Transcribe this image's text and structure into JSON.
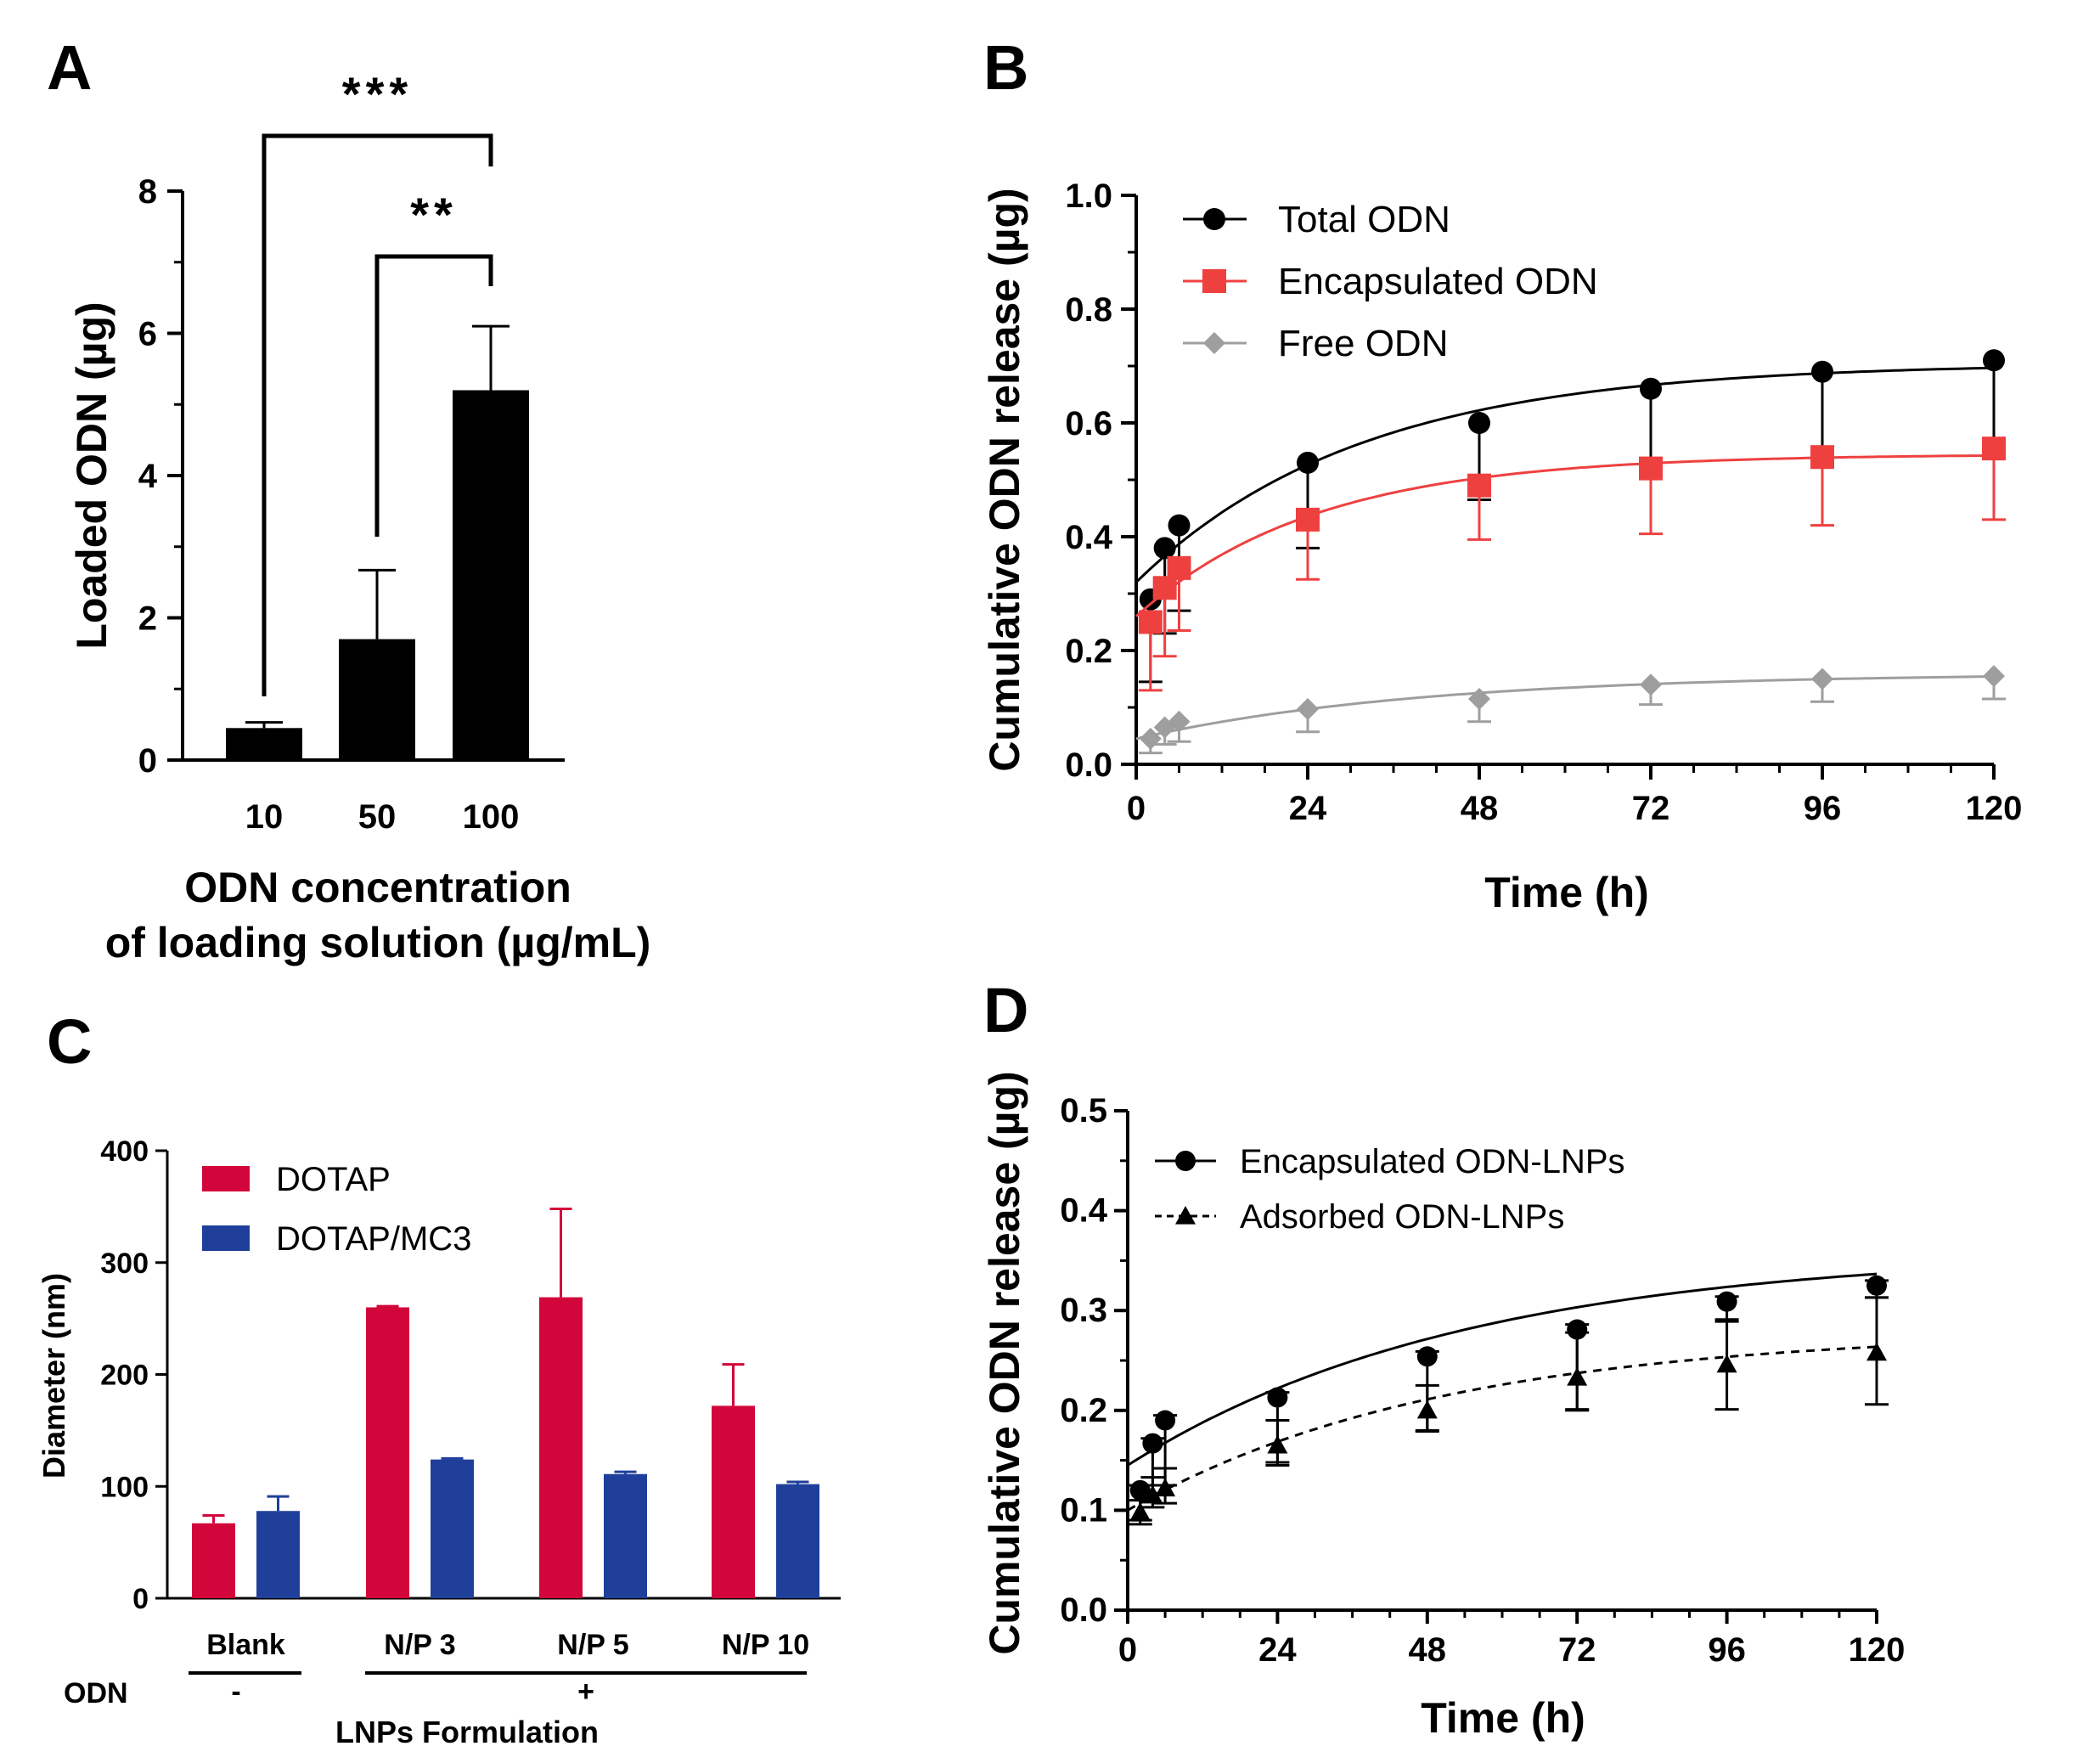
{
  "panels": {
    "A": "A",
    "B": "B",
    "C": "C",
    "D": "D"
  },
  "chart_data": [
    {
      "panel": "A",
      "type": "bar",
      "title": "",
      "xlabel": [
        "ODN concentration",
        "of loading solution (µg/mL)"
      ],
      "ylabel": "Loaded ODN (µg)",
      "categories": [
        "10",
        "50",
        "100"
      ],
      "values": [
        0.45,
        1.7,
        5.2
      ],
      "errors": [
        0.08,
        0.97,
        0.9
      ],
      "ylim": [
        0,
        8
      ],
      "yticks": [
        "0",
        "2",
        "4",
        "6",
        "8"
      ],
      "significance": [
        {
          "from": 0,
          "to": 2,
          "label": "***"
        },
        {
          "from": 1,
          "to": 2,
          "label": "**"
        }
      ],
      "colors": {
        "bar": "#000000"
      }
    },
    {
      "panel": "B",
      "type": "line",
      "xlabel": "Time (h)",
      "ylabel": "Cumulative ODN release (µg)",
      "xlim": [
        0,
        120
      ],
      "ylim": [
        0,
        1.0
      ],
      "xticks": [
        "0",
        "24",
        "48",
        "72",
        "96",
        "120"
      ],
      "yticks": [
        "0.0",
        "0.2",
        "0.4",
        "0.6",
        "0.8",
        "1.0"
      ],
      "legend_position": "top-left",
      "series": [
        {
          "name": "Total ODN",
          "color": "#000000",
          "marker": "circle",
          "error_dir": "down",
          "x": [
            2,
            4,
            6,
            24,
            48,
            72,
            96,
            120
          ],
          "y": [
            0.29,
            0.38,
            0.42,
            0.53,
            0.6,
            0.66,
            0.69,
            0.71
          ],
          "err": [
            0.145,
            0.15,
            0.15,
            0.15,
            0.135,
            0.14,
            0.15,
            0.15
          ],
          "fit": {
            "y0": 0.32,
            "plateau": 0.705,
            "k": 0.032
          }
        },
        {
          "name": "Encapsulated ODN",
          "color": "#ef4040",
          "marker": "square",
          "error_dir": "down",
          "x": [
            2,
            4,
            6,
            24,
            48,
            72,
            96,
            120
          ],
          "y": [
            0.25,
            0.31,
            0.345,
            0.43,
            0.49,
            0.52,
            0.54,
            0.555
          ],
          "err": [
            0.12,
            0.12,
            0.11,
            0.105,
            0.095,
            0.115,
            0.12,
            0.125
          ],
          "fit": {
            "y0": 0.26,
            "plateau": 0.545,
            "k": 0.04
          }
        },
        {
          "name": "Free ODN",
          "color": "#9e9e9e",
          "marker": "diamond",
          "error_dir": "down",
          "x": [
            2,
            4,
            6,
            24,
            48,
            72,
            96,
            120
          ],
          "y": [
            0.045,
            0.065,
            0.075,
            0.097,
            0.115,
            0.14,
            0.15,
            0.155
          ],
          "err": [
            0.025,
            0.03,
            0.035,
            0.04,
            0.04,
            0.035,
            0.04,
            0.04
          ],
          "fit": {
            "y0": 0.045,
            "plateau": 0.16,
            "k": 0.025
          }
        }
      ]
    },
    {
      "panel": "C",
      "type": "bar",
      "xlabel": "LNPs Formulation",
      "ylabel": "Diameter (nm)",
      "categories": [
        "Blank",
        "N/P 3",
        "N/P 5",
        "N/P 10"
      ],
      "ylim": [
        0,
        400
      ],
      "yticks": [
        "0",
        "100",
        "200",
        "300",
        "400"
      ],
      "odn_row": {
        "label": "ODN",
        "minus": "-",
        "plus": "+"
      },
      "legend_position": "top-left",
      "series": [
        {
          "name": "DOTAP",
          "color": "#d2063a",
          "values": [
            67,
            260,
            269,
            172
          ],
          "errors": [
            7,
            1,
            79,
            37
          ]
        },
        {
          "name": "DOTAP/MC3",
          "color": "#1f3f9a",
          "values": [
            78,
            124,
            111,
            102
          ],
          "errors": [
            13,
            1,
            2,
            2
          ]
        }
      ]
    },
    {
      "panel": "D",
      "type": "line",
      "xlabel": "Time (h)",
      "ylabel": "Cumulative ODN release (µg)",
      "xlim": [
        0,
        120
      ],
      "ylim": [
        0,
        0.5
      ],
      "xticks": [
        "0",
        "24",
        "48",
        "72",
        "96",
        "120"
      ],
      "yticks": [
        "0.0",
        "0.1",
        "0.2",
        "0.3",
        "0.4",
        "0.5"
      ],
      "legend_position": "top-left",
      "series": [
        {
          "name": "Encapsulated ODN-LNPs",
          "color": "#000000",
          "marker": "circle",
          "dash": "",
          "x": [
            2,
            4,
            6,
            24,
            48,
            72,
            96,
            120
          ],
          "y": [
            0.12,
            0.167,
            0.19,
            0.213,
            0.254,
            0.281,
            0.309,
            0.325
          ],
          "err_up": [
            0.005,
            0.005,
            0.005,
            0.005,
            0.005,
            0.005,
            0.005,
            0.005
          ],
          "err_down": [
            0.03,
            0.05,
            0.065,
            0.065,
            0.075,
            0.08,
            0.02,
            0.012
          ],
          "fit": {
            "y0": 0.145,
            "plateau": 0.36,
            "k": 0.0185
          }
        },
        {
          "name": "Adsorbed ODN-LNPs",
          "color": "#000000",
          "marker": "triangle",
          "dash": "10,8",
          "x": [
            2,
            4,
            6,
            24,
            48,
            72,
            96,
            120
          ],
          "y": [
            0.098,
            0.115,
            0.122,
            0.165,
            0.2,
            0.233,
            0.246,
            0.258
          ],
          "err_up": [
            0.012,
            0.018,
            0.02,
            0.025,
            0.025,
            0.045,
            0.045,
            0.055
          ],
          "err_down": [
            0.012,
            0.012,
            0.015,
            0.02,
            0.02,
            0.033,
            0.045,
            0.052
          ],
          "fit": {
            "y0": 0.1,
            "plateau": 0.28,
            "k": 0.02
          }
        }
      ]
    }
  ]
}
